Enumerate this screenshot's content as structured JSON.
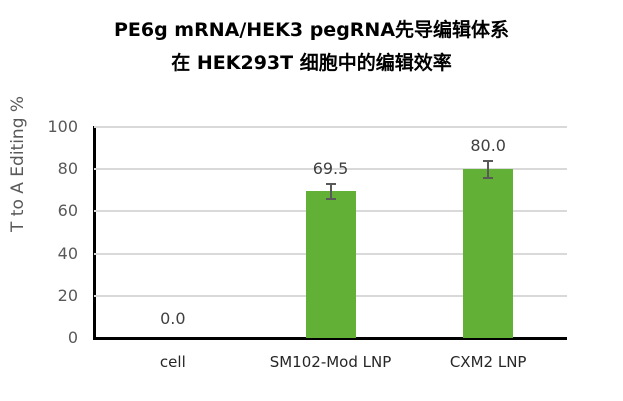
{
  "chart_data": {
    "type": "bar",
    "title": "PE6g mRNA/HEK3 pegRNA先导编辑体系 在 HEK293T 细胞中的编辑效率",
    "title_lines": [
      "PE6g mRNA/HEK3 pegRNA先导编辑体系",
      "在 HEK293T 细胞中的编辑效率"
    ],
    "xlabel": "",
    "ylabel": "T to A Editing %",
    "categories": [
      "cell",
      "SM102-Mod LNP",
      "CXM2 LNP"
    ],
    "values": [
      0.0,
      69.5,
      80.0
    ],
    "value_labels": [
      "0.0",
      "69.5",
      "80.0"
    ],
    "error": [
      0,
      3.5,
      4.0
    ],
    "ylim": [
      0,
      100
    ],
    "yticks": [
      "0",
      "20",
      "40",
      "60",
      "80",
      "100"
    ],
    "grid": true,
    "legend": "none",
    "bar_color": "#62b036",
    "error_color": "#595959"
  }
}
